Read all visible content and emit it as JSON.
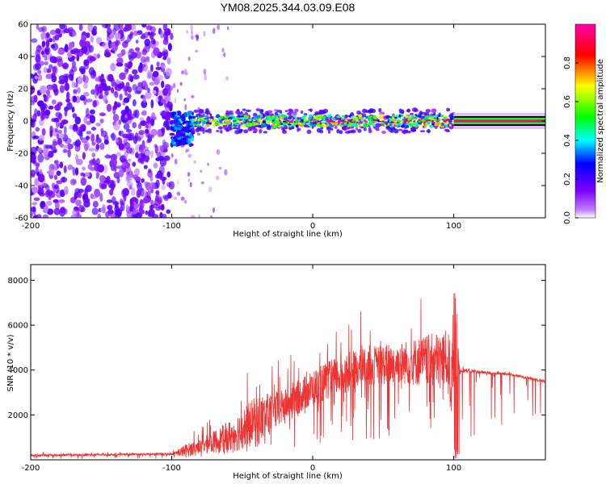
{
  "title": "YM08.2025.344.03.09.E08",
  "chart_data": [
    {
      "type": "heatmap",
      "xlabel": "Height of straight line (km)",
      "ylabel": "Frequency (Hz)",
      "xlim": [
        -200,
        165
      ],
      "ylim": [
        -60,
        60
      ],
      "xticks": [
        -200,
        -100,
        0,
        100
      ],
      "xtick_labels": [
        "-200",
        "-100",
        "0",
        "100"
      ],
      "yticks": [
        -60,
        -40,
        -20,
        0,
        20,
        40,
        60
      ],
      "ytick_labels": [
        "-60",
        "-40",
        "-20",
        "0",
        "20",
        "40",
        "60"
      ],
      "colorbar": {
        "label": "Normalized spectral amplitude",
        "range": [
          0,
          1
        ],
        "ticks": [
          0.0,
          0.2,
          0.4,
          0.6,
          0.8
        ],
        "tick_labels": [
          "0.0",
          "0.2",
          "0.4",
          "0.6",
          "0.8"
        ],
        "colormap": [
          "#ffffff",
          "#7f00ff",
          "#0000ff",
          "#00ffff",
          "#00ff00",
          "#ffff00",
          "#ff0000",
          "#ff00aa"
        ]
      },
      "regions": [
        {
          "x_range": [
            -200,
            -100
          ],
          "freq_range": [
            -60,
            60
          ],
          "amplitude": 0.05,
          "description": "broadband noise"
        },
        {
          "x_range": [
            -100,
            -85
          ],
          "freq_range": [
            -15,
            5
          ],
          "amplitude": 0.3
        },
        {
          "x_range": [
            -85,
            100
          ],
          "freq_range": [
            -5,
            5
          ],
          "amplitude": 0.5
        },
        {
          "x_range": [
            100,
            165
          ],
          "freq_range": [
            -2,
            2
          ],
          "amplitude": 0.95
        }
      ]
    },
    {
      "type": "line",
      "xlabel": "Height of straight line (km)",
      "ylabel": "SNR (10 * v/v)",
      "xlim": [
        -200,
        165
      ],
      "ylim": [
        0,
        8700
      ],
      "xticks": [
        -200,
        -100,
        0,
        100
      ],
      "xtick_labels": [
        "-200",
        "-100",
        "0",
        "100"
      ],
      "yticks": [
        2000,
        4000,
        6000,
        8000
      ],
      "ytick_labels": [
        "2000",
        "4000",
        "6000",
        "8000"
      ],
      "series": [
        {
          "name": "SNR",
          "color": "#ee3333",
          "envelope": {
            "x": [
              -200,
              -150,
              -100,
              -90,
              -80,
              -60,
              -40,
              -20,
              0,
              20,
              40,
              60,
              80,
              95,
              100,
              105,
              120,
              140,
              165
            ],
            "mean": [
              200,
              230,
              260,
              400,
              600,
              1000,
              1700,
              2400,
              3200,
              3800,
              4200,
              4300,
              4400,
              4500,
              3200,
              4000,
              3900,
              3800,
              3500
            ],
            "peak": [
              350,
              350,
              350,
              1300,
              1500,
              3000,
              5000,
              4500,
              5500,
              6300,
              6800,
              6900,
              7700,
              8200,
              8700,
              4300,
              4100,
              3950,
              3700
            ]
          }
        }
      ]
    }
  ]
}
